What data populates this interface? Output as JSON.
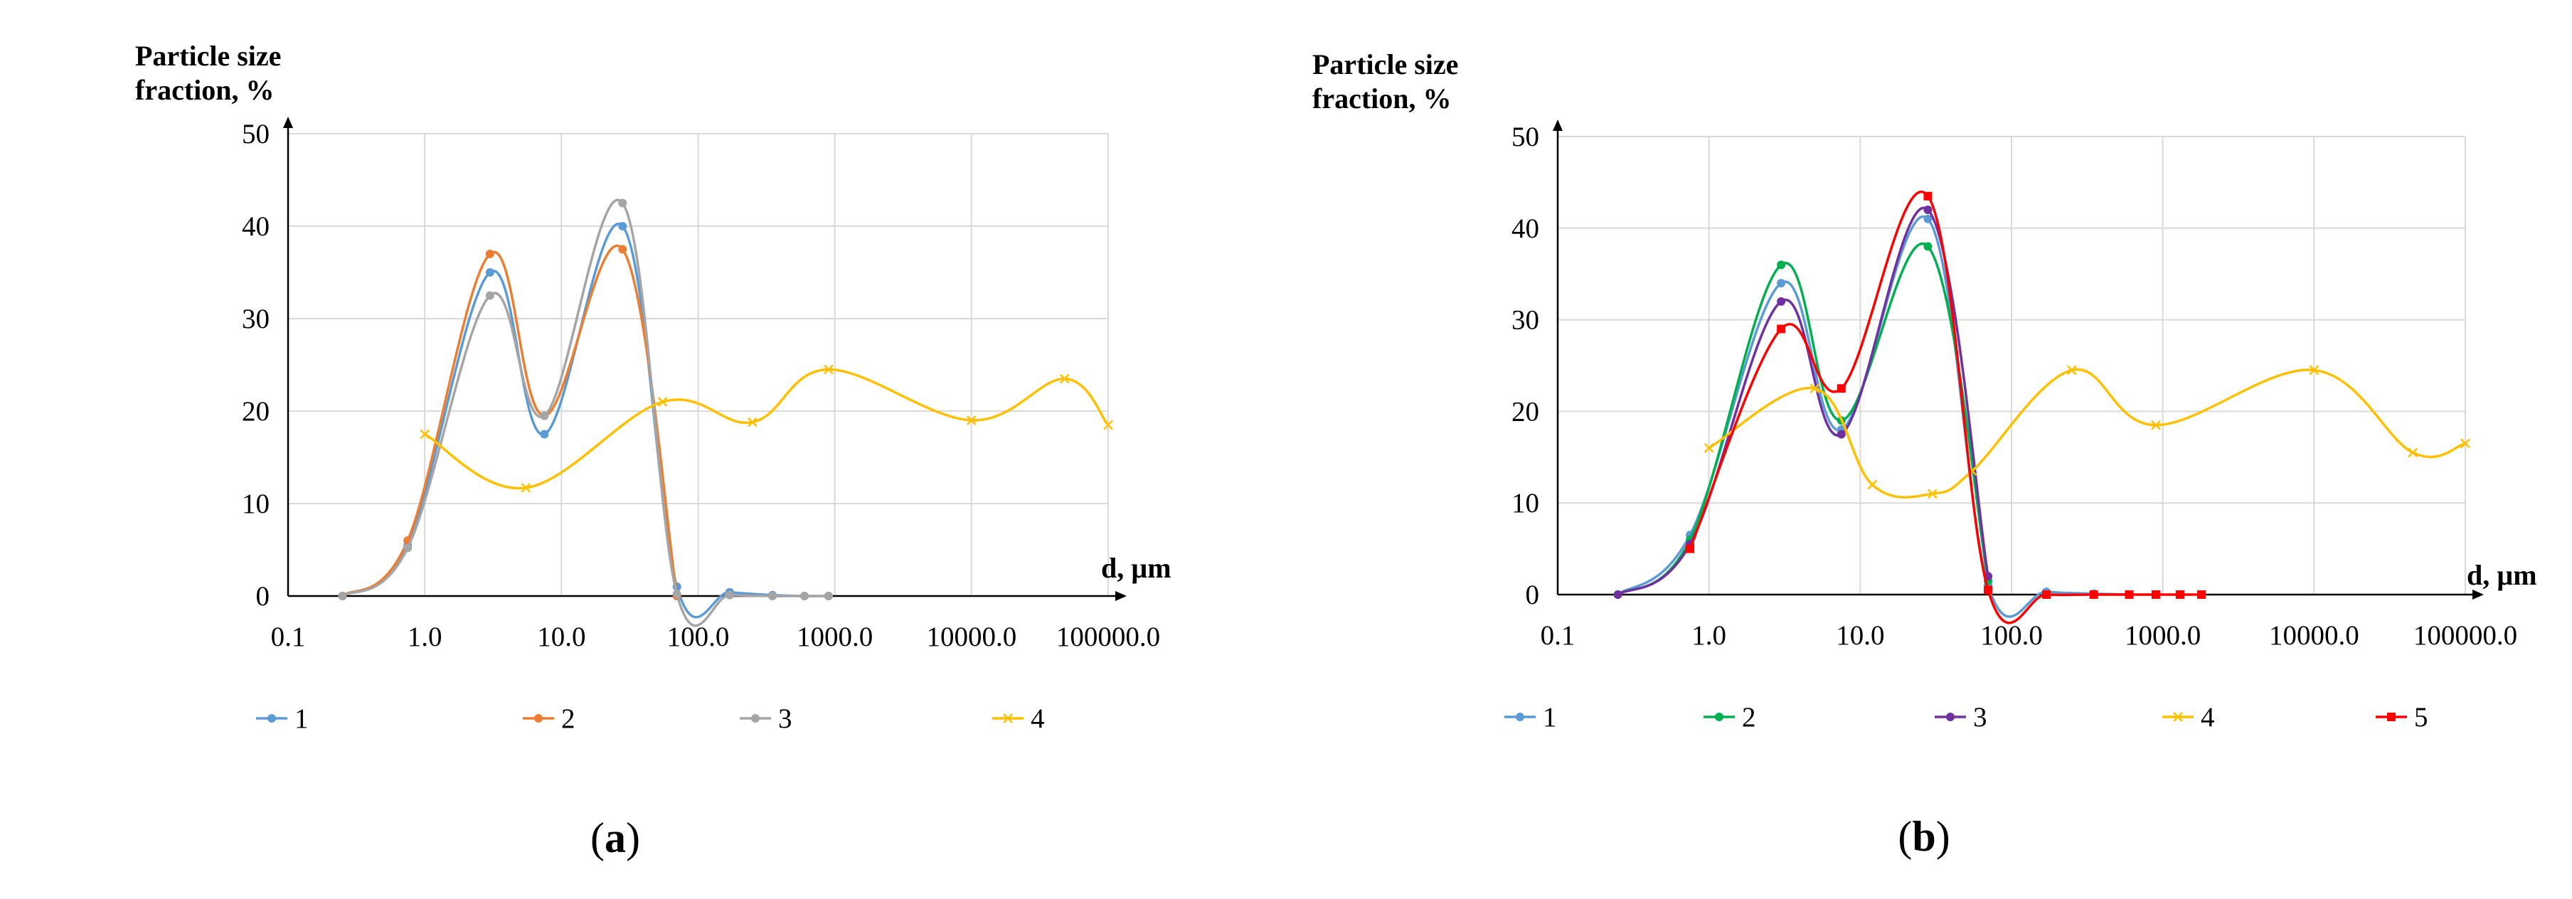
{
  "chart_data": [
    {
      "type": "line",
      "panel_label": "a",
      "ylabel_line1": "Particle size",
      "ylabel_line2": "fraction, %",
      "xlabel": "d, µm",
      "xscale": "log",
      "xlim": [
        0.1,
        100000
      ],
      "ylim": [
        0,
        50
      ],
      "yticks": [
        0,
        10,
        20,
        30,
        40,
        50
      ],
      "ytick_labels": [
        "0",
        "10",
        "20",
        "30",
        "40",
        "50"
      ],
      "xticks": [
        0.1,
        1,
        10,
        100,
        1000,
        10000,
        100000
      ],
      "xtick_labels": [
        "0.1",
        "1.0",
        "10.0",
        "100.0",
        "1000.0",
        "10000.0",
        "100000.0"
      ],
      "grid": "horizontal and vertical",
      "legend_position": "bottom",
      "series": [
        {
          "name": "1",
          "color": "#5B9BD5",
          "marker": "circle",
          "x": [
            0.25,
            0.75,
            3.0,
            7.5,
            28,
            70,
            170,
            350,
            600,
            900
          ],
          "y": [
            0,
            5.5,
            35,
            17.5,
            40,
            1,
            0.4,
            0.1,
            0,
            0
          ]
        },
        {
          "name": "2",
          "color": "#ED7D31",
          "marker": "circle",
          "x": [
            0.25,
            0.75,
            3.0,
            7.5,
            28,
            70
          ],
          "y": [
            0,
            6,
            37,
            19.5,
            37.5,
            0
          ]
        },
        {
          "name": "3",
          "color": "#A5A5A5",
          "marker": "circle",
          "x": [
            0.25,
            0.75,
            3.0,
            7.5,
            28,
            70,
            170,
            350,
            600,
            900
          ],
          "y": [
            0,
            5.2,
            32.5,
            19.5,
            42.5,
            0.2,
            0.1,
            0,
            0,
            0
          ]
        },
        {
          "name": "4",
          "color": "#FFC000",
          "marker": "x",
          "x": [
            1,
            5.5,
            55,
            250,
            900,
            10000,
            48000,
            100000
          ],
          "y": [
            17.5,
            11.7,
            21,
            18.8,
            24.5,
            19,
            23.5,
            18.5
          ]
        }
      ]
    },
    {
      "type": "line",
      "panel_label": "b",
      "ylabel_line1": "Particle size",
      "ylabel_line2": "fraction, %",
      "xlabel": "d, µm",
      "xscale": "log",
      "xlim": [
        0.1,
        100000
      ],
      "ylim": [
        0,
        50
      ],
      "yticks": [
        0,
        10,
        20,
        30,
        40,
        50
      ],
      "ytick_labels": [
        "0",
        "10",
        "20",
        "30",
        "40",
        "50"
      ],
      "xticks": [
        0.1,
        1,
        10,
        100,
        1000,
        10000,
        100000
      ],
      "xtick_labels": [
        "0.1",
        "1.0",
        "10.0",
        "100.0",
        "1000.0",
        "10000.0",
        "100000.0"
      ],
      "grid": "horizontal and vertical",
      "legend_position": "bottom",
      "series": [
        {
          "name": "1",
          "color": "#5B9BD5",
          "marker": "circle",
          "x": [
            0.25,
            0.75,
            3.0,
            7.5,
            28,
            70,
            170,
            350,
            600
          ],
          "y": [
            0,
            6.5,
            34,
            18,
            41,
            1,
            0.3,
            0.1,
            0
          ]
        },
        {
          "name": "2",
          "color": "#00B050",
          "marker": "circle",
          "x": [
            0.25,
            0.75,
            3.0,
            7.5,
            28,
            70
          ],
          "y": [
            0,
            6,
            36,
            19,
            38,
            1.5
          ]
        },
        {
          "name": "3",
          "color": "#7030A0",
          "marker": "circle",
          "x": [
            0.25,
            0.75,
            3.0,
            7.5,
            28,
            70
          ],
          "y": [
            0,
            5.5,
            32,
            17.5,
            42,
            2
          ]
        },
        {
          "name": "4",
          "color": "#FFC000",
          "marker": "x",
          "x": [
            1,
            5,
            12,
            30,
            55,
            250,
            900,
            10000,
            45000,
            100000
          ],
          "y": [
            16,
            22.5,
            12,
            11,
            13.5,
            24.5,
            18.5,
            24.5,
            15.5,
            16.5
          ]
        },
        {
          "name": "5",
          "color": "#FF0000",
          "marker": "square",
          "x": [
            0.75,
            3.0,
            7.5,
            28,
            70,
            170,
            350,
            600,
            900,
            1300,
            1800
          ],
          "y": [
            5,
            29,
            22.5,
            43.5,
            0.5,
            0,
            0,
            0,
            0,
            0,
            0
          ]
        }
      ]
    }
  ]
}
